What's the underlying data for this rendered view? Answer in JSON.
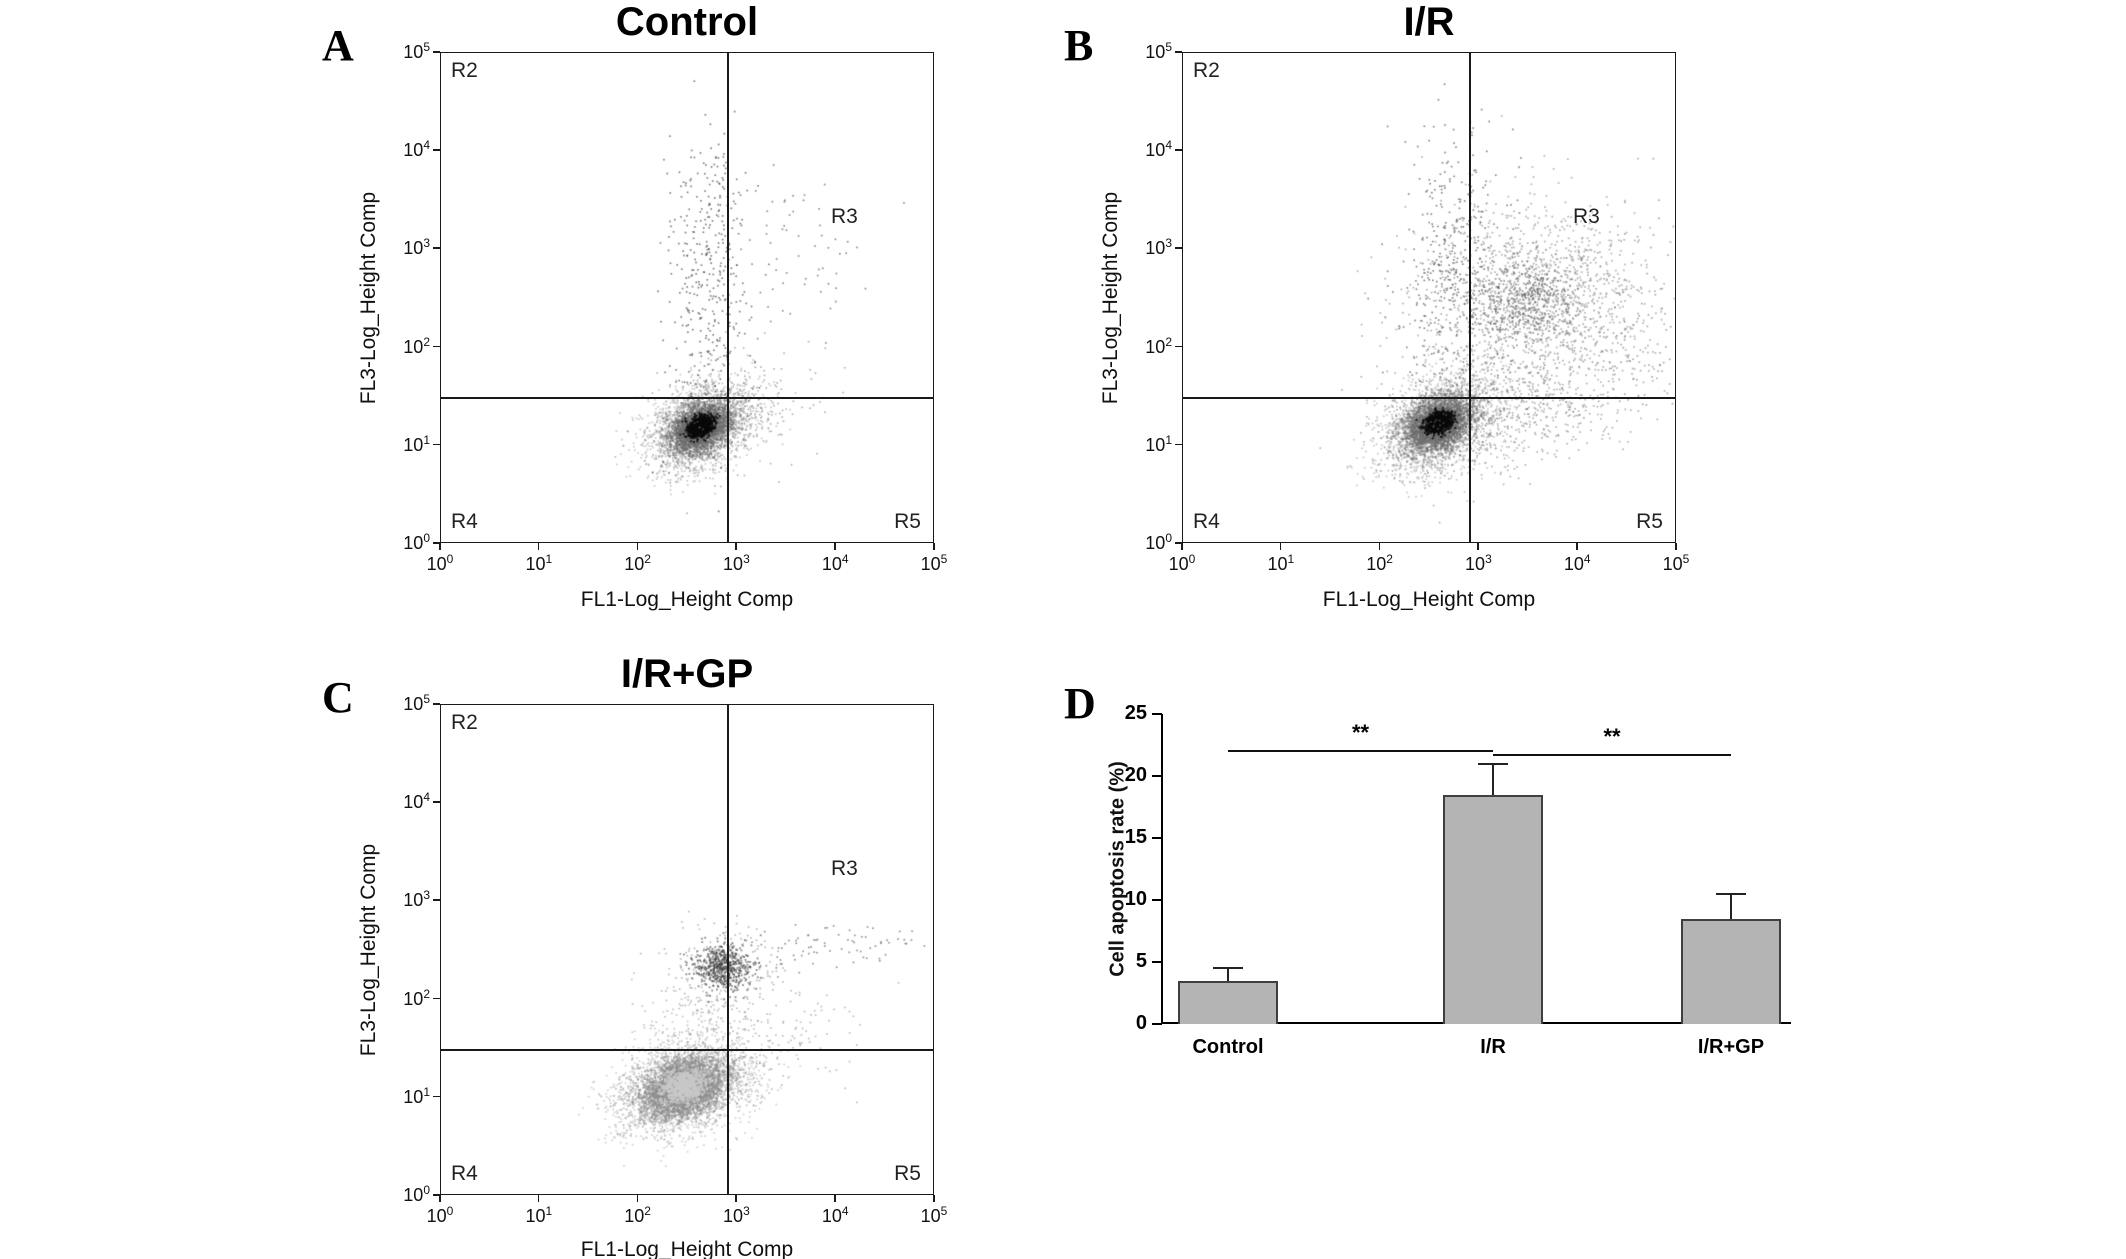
{
  "figure": {
    "background": "#ffffff"
  },
  "flow_common": {
    "tick_base": "10",
    "tick_exponents": [
      0,
      1,
      2,
      3,
      4,
      5
    ],
    "gate_x_log10": 2.9,
    "gate_y_log10": 1.5
  },
  "chart_data": [
    {
      "type": "scatter",
      "panel_letter": "A",
      "title": "Control",
      "xlabel": "FL1-Log_Height Comp",
      "ylabel": "FL3-Log_Height Comp",
      "x_range_log10": [
        0,
        5
      ],
      "y_range_log10": [
        0,
        5
      ],
      "quadrant_gate_log10": {
        "x": 2.9,
        "y": 1.5
      },
      "quadrants": [
        "R2",
        "R3",
        "R4",
        "R5"
      ],
      "clusters": [
        {
          "cx": 2.62,
          "cy": 1.18,
          "sx": 0.3,
          "sy": 0.2,
          "rot": 30,
          "n": 2200,
          "color": "#8a8a8a",
          "alpha": 0.45,
          "size": 1.7
        },
        {
          "cx": 2.62,
          "cy": 1.18,
          "sx": 0.16,
          "sy": 0.11,
          "rot": 30,
          "n": 2600,
          "color": "#6a6a6a",
          "alpha": 0.5,
          "size": 2
        },
        {
          "cx": 2.63,
          "cy": 1.2,
          "sx": 0.065,
          "sy": 0.045,
          "rot": 30,
          "n": 1100,
          "color": "#0a0a0a",
          "alpha": 0.85,
          "size": 2
        },
        {
          "cx": 2.68,
          "cy": 2.55,
          "sx": 0.2,
          "sy": 0.7,
          "rot": 0,
          "n": 320,
          "color": "#555555",
          "alpha": 0.8,
          "size": 1.6
        },
        {
          "cx": 2.75,
          "cy": 3.55,
          "sx": 0.18,
          "sy": 0.3,
          "rot": 0,
          "n": 60,
          "color": "#555555",
          "alpha": 0.8,
          "size": 1.6
        },
        {
          "cx": 3.55,
          "cy": 2.95,
          "sx": 0.45,
          "sy": 0.4,
          "rot": 15,
          "n": 70,
          "color": "#666666",
          "alpha": 0.8,
          "size": 1.6
        },
        {
          "cx": 2.95,
          "cy": 1.35,
          "sx": 0.45,
          "sy": 0.28,
          "rot": 25,
          "n": 260,
          "color": "#777777",
          "alpha": 0.6,
          "size": 1.6
        }
      ]
    },
    {
      "type": "scatter",
      "panel_letter": "B",
      "title": "I/R",
      "xlabel": "FL1-Log_Height Comp",
      "ylabel": "FL3-Log_Height Comp",
      "x_range_log10": [
        0,
        5
      ],
      "y_range_log10": [
        0,
        5
      ],
      "quadrant_gate_log10": {
        "x": 2.9,
        "y": 1.5
      },
      "quadrants": [
        "R2",
        "R3",
        "R4",
        "R5"
      ],
      "clusters": [
        {
          "cx": 2.58,
          "cy": 1.22,
          "sx": 0.32,
          "sy": 0.22,
          "rot": 30,
          "n": 2400,
          "color": "#8a8a8a",
          "alpha": 0.45,
          "size": 1.7
        },
        {
          "cx": 2.58,
          "cy": 1.22,
          "sx": 0.17,
          "sy": 0.12,
          "rot": 30,
          "n": 2800,
          "color": "#6a6a6a",
          "alpha": 0.5,
          "size": 2
        },
        {
          "cx": 2.59,
          "cy": 1.24,
          "sx": 0.065,
          "sy": 0.045,
          "rot": 30,
          "n": 1100,
          "color": "#0a0a0a",
          "alpha": 0.85,
          "size": 2
        },
        {
          "cx": 2.75,
          "cy": 2.8,
          "sx": 0.28,
          "sy": 0.75,
          "rot": 0,
          "n": 450,
          "color": "#555555",
          "alpha": 0.75,
          "size": 1.6
        },
        {
          "cx": 3.6,
          "cy": 2.5,
          "sx": 0.62,
          "sy": 0.5,
          "rot": 8,
          "n": 1300,
          "color": "#777777",
          "alpha": 0.55,
          "size": 1.7
        },
        {
          "cx": 3.5,
          "cy": 2.48,
          "sx": 0.28,
          "sy": 0.22,
          "rot": 8,
          "n": 500,
          "color": "#606060",
          "alpha": 0.6,
          "size": 1.8
        },
        {
          "cx": 3.3,
          "cy": 1.35,
          "sx": 0.65,
          "sy": 0.3,
          "rot": 12,
          "n": 650,
          "color": "#777777",
          "alpha": 0.6,
          "size": 1.6
        },
        {
          "cx": 4.5,
          "cy": 2.2,
          "sx": 0.4,
          "sy": 0.5,
          "rot": 0,
          "n": 150,
          "color": "#777777",
          "alpha": 0.7,
          "size": 1.6
        }
      ]
    },
    {
      "type": "scatter",
      "panel_letter": "C",
      "title": "I/R+GP",
      "xlabel": "FL1-Log_Height Comp",
      "ylabel": "FL3-Log_Height Comp",
      "x_range_log10": [
        0,
        5
      ],
      "y_range_log10": [
        0,
        5
      ],
      "quadrant_gate_log10": {
        "x": 2.9,
        "y": 1.5
      },
      "quadrants": [
        "R2",
        "R3",
        "R4",
        "R5"
      ],
      "clusters": [
        {
          "cx": 2.45,
          "cy": 1.1,
          "sx": 0.36,
          "sy": 0.22,
          "rot": 20,
          "n": 2600,
          "color": "#9a9a9a",
          "alpha": 0.45,
          "size": 1.7
        },
        {
          "cx": 2.45,
          "cy": 1.1,
          "sx": 0.22,
          "sy": 0.14,
          "rot": 20,
          "n": 3200,
          "color": "#8c8c8c",
          "alpha": 0.5,
          "size": 2
        },
        {
          "cx": 2.46,
          "cy": 1.12,
          "sx": 0.11,
          "sy": 0.07,
          "rot": 20,
          "n": 900,
          "color": "#c8c8c8",
          "alpha": 0.8,
          "size": 2.2
        },
        {
          "cx": 2.86,
          "cy": 2.33,
          "sx": 0.14,
          "sy": 0.11,
          "rot": 0,
          "n": 550,
          "color": "#3a3a3a",
          "alpha": 0.6,
          "size": 1.8
        },
        {
          "cx": 2.86,
          "cy": 2.3,
          "sx": 0.3,
          "sy": 0.24,
          "rot": 0,
          "n": 220,
          "color": "#777777",
          "alpha": 0.55,
          "size": 1.6
        },
        {
          "cx": 3.9,
          "cy": 2.5,
          "sx": 0.65,
          "sy": 0.12,
          "rot": 4,
          "n": 90,
          "color": "#666666",
          "alpha": 0.75,
          "size": 1.6
        },
        {
          "cx": 3.35,
          "cy": 1.55,
          "sx": 0.55,
          "sy": 0.3,
          "rot": 18,
          "n": 160,
          "color": "#888888",
          "alpha": 0.6,
          "size": 1.6
        },
        {
          "cx": 2.6,
          "cy": 1.75,
          "sx": 0.3,
          "sy": 0.35,
          "rot": 0,
          "n": 200,
          "color": "#8a8a8a",
          "alpha": 0.55,
          "size": 1.6
        }
      ]
    },
    {
      "type": "bar",
      "panel_letter": "D",
      "ylabel": "Cell apoptosis rate (%)",
      "categories": [
        "Control",
        "I/R",
        "I/R+GP"
      ],
      "values": [
        3.5,
        18.5,
        8.5
      ],
      "errors_upper": [
        1.0,
        2.5,
        2.0
      ],
      "ylim": [
        0,
        25
      ],
      "yticks": [
        0,
        5,
        10,
        15,
        20,
        25
      ],
      "bar_color": "#b4b4b4",
      "bar_border": "#3f3f3f",
      "grid": false,
      "significance": [
        {
          "between": [
            0,
            1
          ],
          "label": "**"
        },
        {
          "between": [
            1,
            2
          ],
          "label": "**"
        }
      ]
    }
  ]
}
